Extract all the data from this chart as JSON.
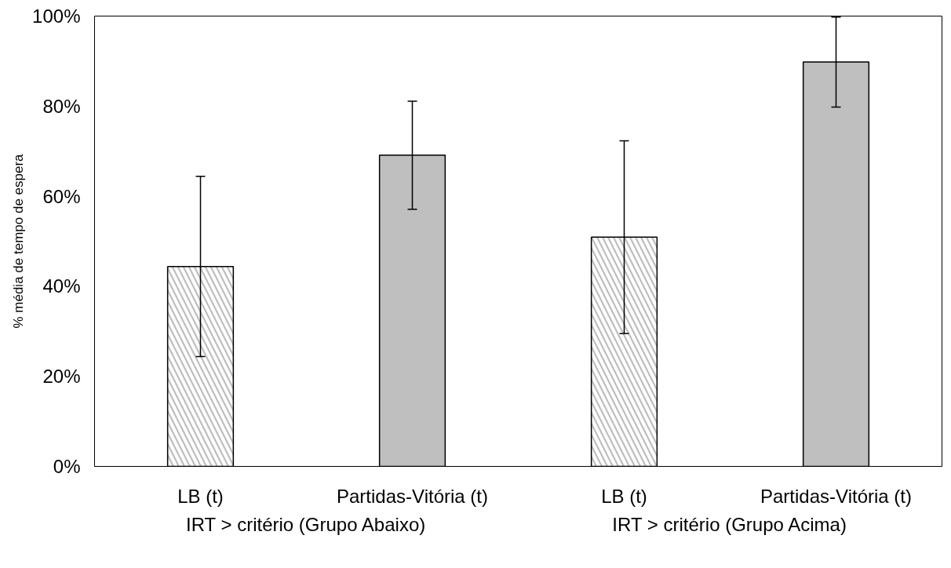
{
  "chart_data": {
    "type": "bar",
    "ylabel": "% média de tempo de espera",
    "categories": [
      "LB (t)",
      "Partidas-Vitória (t)",
      "LB (t)",
      "Partidas-Vitória (t)"
    ],
    "series": [
      {
        "color": "#bfbfbf",
        "values": [
          44.4,
          null,
          50.9,
          null
        ],
        "errors": [
          20,
          null,
          21.4,
          null
        ]
      },
      {
        "color": "#bfbfbf",
        "values": [
          null,
          69.1,
          null,
          89.8
        ],
        "errors": [
          null,
          12,
          null,
          10
        ]
      }
    ],
    "annotations": [
      "IRT > critério (Grupo Abaixo)",
      "IRT > critério (Grupo Acima)"
    ],
    "ylim": [
      0,
      100
    ],
    "yticks": [
      {
        "value": 0,
        "label": "0%"
      },
      {
        "value": 20,
        "label": "20%"
      },
      {
        "value": 40,
        "label": "40%"
      },
      {
        "value": 60,
        "label": "60%"
      },
      {
        "value": 80,
        "label": "80%"
      },
      {
        "value": 100,
        "label": "100%"
      }
    ],
    "grid": false
  }
}
